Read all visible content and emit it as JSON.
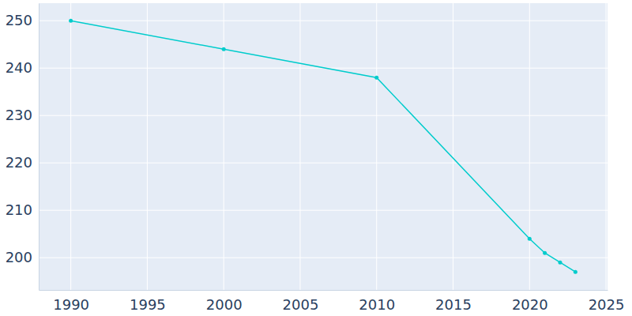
{
  "chart_data": {
    "type": "line",
    "x": [
      1990,
      2000,
      2010,
      2020,
      2021,
      2022,
      2023
    ],
    "values": [
      250,
      244,
      238,
      204,
      201,
      199,
      197
    ],
    "color": "#00cccc",
    "marker": "circle",
    "xlim": [
      1987.9,
      2025.1
    ],
    "xticks": [
      1990,
      1995,
      2000,
      2005,
      2010,
      2015,
      2020,
      2025
    ],
    "ylim": [
      193.2,
      253.7
    ],
    "yticks": [
      200,
      210,
      220,
      230,
      240,
      250
    ],
    "grid": true
  }
}
